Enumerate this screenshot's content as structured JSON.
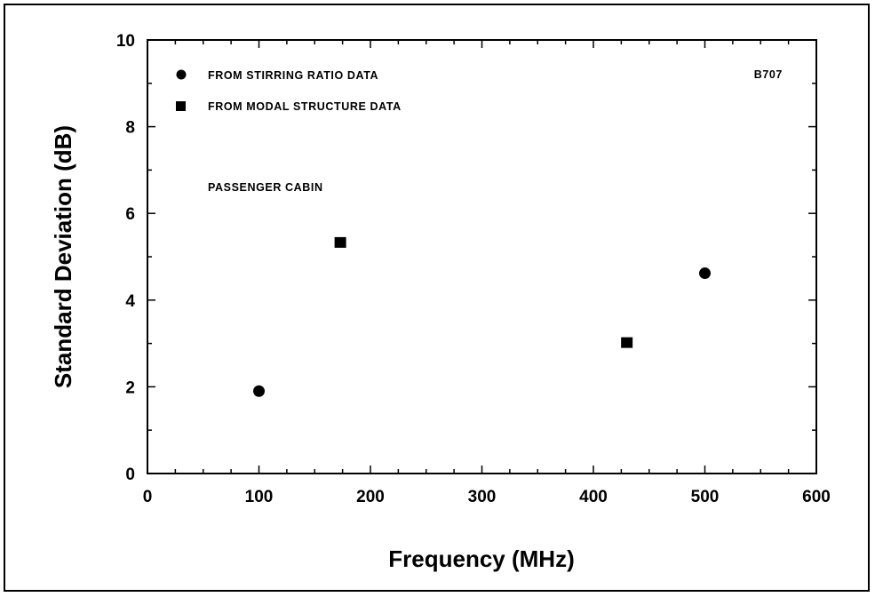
{
  "chart_data": {
    "type": "scatter",
    "title": "",
    "xlabel": "Frequency (MHz)",
    "ylabel": "Standard Deviation (dB)",
    "xlim": [
      0,
      600
    ],
    "ylim": [
      0,
      10
    ],
    "x_ticks": [
      "0",
      "100",
      "200",
      "300",
      "400",
      "500",
      "600"
    ],
    "y_ticks": [
      "0",
      "2",
      "4",
      "6",
      "8",
      "10"
    ],
    "grid": false,
    "legend_position": "top-left",
    "series": [
      {
        "name": "FROM STIRRING RATIO DATA",
        "marker": "circle",
        "color": "#000000",
        "points": [
          {
            "x": 100,
            "y": 1.9
          },
          {
            "x": 500,
            "y": 4.62
          }
        ]
      },
      {
        "name": "FROM MODAL STRUCTURE DATA",
        "marker": "square",
        "color": "#000000",
        "points": [
          {
            "x": 173,
            "y": 5.33
          },
          {
            "x": 430,
            "y": 3.02
          }
        ]
      }
    ],
    "annotations": [
      "B707",
      "PASSENGER CABIN"
    ]
  }
}
